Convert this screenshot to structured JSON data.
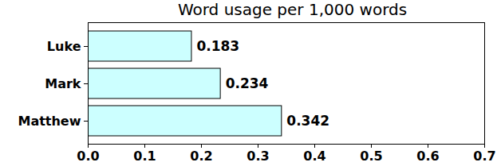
{
  "chart_data": {
    "type": "bar",
    "title": "Word usage per 1,000 words",
    "orientation": "horizontal",
    "categories": [
      "Luke",
      "Mark",
      "Matthew"
    ],
    "values": [
      0.183,
      0.234,
      0.342
    ],
    "color": "#ccffff",
    "xlim": [
      0,
      0.7
    ],
    "xticks": [
      {
        "value": 0,
        "label": "0.0"
      },
      0.1,
      0.2,
      0.3,
      0.4,
      0.5,
      0.6,
      0.7
    ],
    "data_labels": true,
    "grid": false
  }
}
